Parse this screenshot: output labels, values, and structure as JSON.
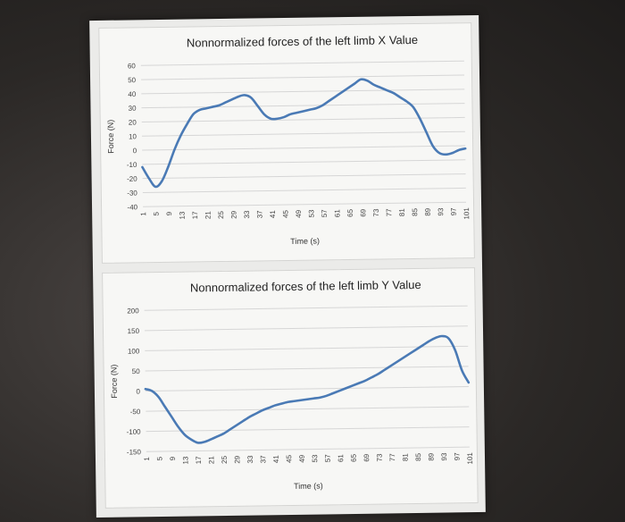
{
  "chart_data": [
    {
      "type": "line",
      "title": "Nonnormalized forces of the left limb X Value",
      "xlabel": "Time (s)",
      "ylabel": "Force (N)",
      "ylim": [
        -40,
        60
      ],
      "yticks": [
        60,
        50,
        40,
        30,
        20,
        10,
        0,
        -10,
        -20,
        -30,
        -40
      ],
      "xticks": [
        1,
        5,
        9,
        13,
        17,
        21,
        25,
        29,
        33,
        37,
        41,
        45,
        49,
        53,
        57,
        61,
        65,
        69,
        73,
        77,
        81,
        85,
        89,
        93,
        97,
        101
      ],
      "xlim": [
        1,
        101
      ],
      "grid": true,
      "series": [
        {
          "color": "#4a7ab5",
          "x": [
            1,
            3,
            5,
            7,
            9,
            11,
            13,
            15,
            17,
            19,
            21,
            23,
            25,
            27,
            29,
            31,
            33,
            35,
            37,
            39,
            41,
            43,
            45,
            47,
            49,
            51,
            53,
            55,
            57,
            59,
            61,
            63,
            65,
            67,
            69,
            71,
            73,
            75,
            77,
            79,
            81,
            83,
            85,
            87,
            89,
            91,
            93,
            95,
            97,
            99,
            101
          ],
          "values": [
            -12,
            -20,
            -26,
            -22,
            -12,
            0,
            10,
            18,
            25,
            28,
            29,
            30,
            31,
            33,
            35,
            37,
            38,
            36,
            30,
            24,
            21,
            21,
            22,
            24,
            25,
            26,
            27,
            28,
            30,
            33,
            36,
            39,
            42,
            45,
            48,
            47,
            44,
            42,
            40,
            38,
            35,
            32,
            28,
            20,
            10,
            0,
            -5,
            -6,
            -5,
            -3,
            -2
          ]
        }
      ]
    },
    {
      "type": "line",
      "title": "Nonnormalized forces of the left limb Y Value",
      "xlabel": "Time (s)",
      "ylabel": "Force (N)",
      "ylim": [
        -150,
        200
      ],
      "yticks": [
        200,
        150,
        100,
        50,
        0,
        -50,
        -100,
        -150
      ],
      "xticks": [
        1,
        5,
        9,
        13,
        17,
        21,
        25,
        29,
        33,
        37,
        41,
        45,
        49,
        53,
        57,
        61,
        65,
        69,
        73,
        77,
        81,
        85,
        89,
        93,
        97,
        101
      ],
      "xlim": [
        1,
        101
      ],
      "grid": true,
      "series": [
        {
          "color": "#4a7ab5",
          "x": [
            1,
            3,
            5,
            7,
            9,
            11,
            13,
            15,
            17,
            19,
            21,
            23,
            25,
            27,
            29,
            31,
            33,
            35,
            37,
            39,
            41,
            43,
            45,
            47,
            49,
            51,
            53,
            55,
            57,
            59,
            61,
            63,
            65,
            67,
            69,
            71,
            73,
            75,
            77,
            79,
            81,
            83,
            85,
            87,
            89,
            91,
            93,
            95,
            97,
            99,
            101
          ],
          "values": [
            5,
            0,
            -15,
            -40,
            -65,
            -90,
            -110,
            -122,
            -130,
            -128,
            -122,
            -115,
            -108,
            -98,
            -88,
            -78,
            -68,
            -60,
            -52,
            -46,
            -40,
            -36,
            -32,
            -30,
            -28,
            -26,
            -24,
            -22,
            -18,
            -12,
            -6,
            0,
            6,
            12,
            18,
            26,
            34,
            44,
            54,
            64,
            74,
            84,
            94,
            104,
            114,
            122,
            126,
            120,
            90,
            40,
            10
          ]
        }
      ]
    }
  ]
}
